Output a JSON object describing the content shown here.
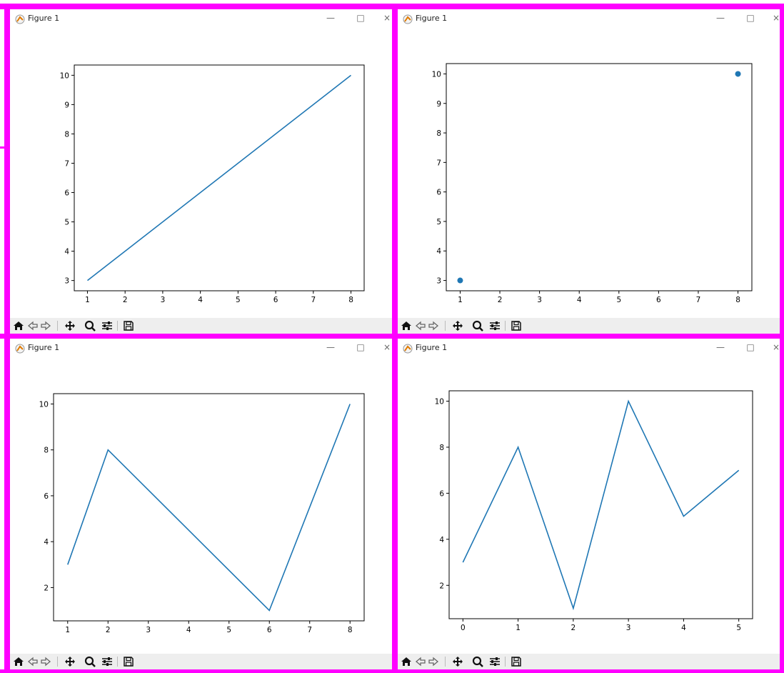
{
  "windows": [
    {
      "title": "Figure 1",
      "controls": {
        "minimize": "—",
        "maximize": "□",
        "close": "×"
      }
    },
    {
      "title": "Figure 1",
      "controls": {
        "minimize": "—",
        "maximize": "□",
        "close": "×"
      }
    },
    {
      "title": "Figure 1",
      "controls": {
        "minimize": "—",
        "maximize": "□",
        "close": "×"
      }
    },
    {
      "title": "Figure 1",
      "controls": {
        "minimize": "—",
        "maximize": "□",
        "close": "×"
      }
    }
  ],
  "toolbar_icons": [
    "home-icon",
    "back-icon",
    "forward-icon",
    "pan-icon",
    "zoom-icon",
    "configure-subplots-icon",
    "save-icon"
  ],
  "colors": {
    "series": "#1f77b4",
    "annotation_frame": "#ff00ff",
    "toolbar": "#eeeeee"
  },
  "chart_data": [
    {
      "type": "line",
      "x": [
        1,
        8
      ],
      "y": [
        3,
        10
      ],
      "xlim": [
        0.65,
        8.35
      ],
      "ylim": [
        2.65,
        10.35
      ],
      "xticks": [
        1,
        2,
        3,
        4,
        5,
        6,
        7,
        8
      ],
      "yticks": [
        3,
        4,
        5,
        6,
        7,
        8,
        9,
        10
      ],
      "grid": false
    },
    {
      "type": "scatter",
      "x": [
        1,
        8
      ],
      "y": [
        3,
        10
      ],
      "xlim": [
        0.65,
        8.35
      ],
      "ylim": [
        2.65,
        10.35
      ],
      "xticks": [
        1,
        2,
        3,
        4,
        5,
        6,
        7,
        8
      ],
      "yticks": [
        3,
        4,
        5,
        6,
        7,
        8,
        9,
        10
      ],
      "grid": false
    },
    {
      "type": "line",
      "x": [
        1,
        2,
        6,
        8
      ],
      "y": [
        3,
        8,
        1,
        10
      ],
      "xlim": [
        0.65,
        8.35
      ],
      "ylim": [
        0.55,
        10.45
      ],
      "xticks": [
        1,
        2,
        3,
        4,
        5,
        6,
        7,
        8
      ],
      "yticks": [
        2,
        4,
        6,
        8,
        10
      ],
      "grid": false
    },
    {
      "type": "line",
      "x": [
        0,
        1,
        2,
        3,
        4,
        5
      ],
      "y": [
        3,
        8,
        1,
        10,
        5,
        7
      ],
      "xlim": [
        -0.25,
        5.25
      ],
      "ylim": [
        0.55,
        10.45
      ],
      "xticks": [
        0,
        1,
        2,
        3,
        4,
        5
      ],
      "yticks": [
        2,
        4,
        6,
        8,
        10
      ],
      "grid": false
    }
  ]
}
